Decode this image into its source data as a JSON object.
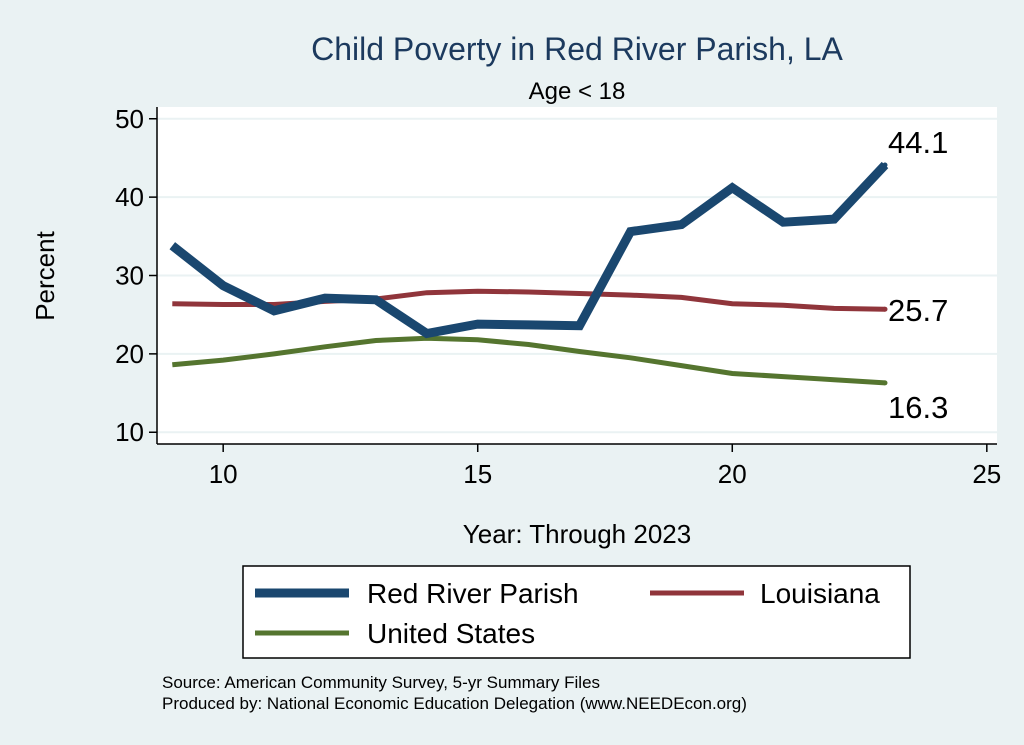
{
  "chart_data": {
    "type": "line",
    "title": "Child Poverty in Red River Parish, LA",
    "subtitle": "Age < 18",
    "xlabel": "Year: Through 2023",
    "ylabel": "Percent",
    "xlim": [
      8.7,
      25.2
    ],
    "ylim": [
      8.5,
      51.5
    ],
    "xticks": [
      10,
      15,
      20,
      25
    ],
    "yticks": [
      10,
      20,
      30,
      40,
      50
    ],
    "x": [
      9,
      10,
      11,
      12,
      13,
      14,
      15,
      16,
      17,
      18,
      19,
      20,
      21,
      22,
      23
    ],
    "series": [
      {
        "name": "Red River Parish",
        "color": "#1a476f",
        "values": [
          33.8,
          28.7,
          25.5,
          27.1,
          26.9,
          22.6,
          23.8,
          23.7,
          23.6,
          35.6,
          36.5,
          41.2,
          36.8,
          37.2,
          44.1
        ],
        "end_label": "44.1"
      },
      {
        "name": "Louisiana",
        "color": "#90353b",
        "values": [
          26.4,
          26.3,
          26.3,
          26.7,
          27.0,
          27.8,
          28.0,
          27.9,
          27.7,
          27.5,
          27.2,
          26.4,
          26.2,
          25.8,
          25.7
        ],
        "end_label": "25.7"
      },
      {
        "name": "United States",
        "color": "#55752f",
        "values": [
          18.6,
          19.2,
          20.0,
          20.9,
          21.7,
          22.0,
          21.8,
          21.2,
          20.3,
          19.5,
          18.5,
          17.5,
          17.1,
          16.7,
          16.3
        ],
        "end_label": "16.3"
      }
    ],
    "legend": {
      "position": "bottom",
      "entries": [
        "Red River Parish",
        "Louisiana",
        "United States"
      ]
    },
    "grid": true
  },
  "notes": {
    "source": "Source: American Community Survey, 5-yr Summary Files",
    "produced_by": "Produced by: National Economic Education Delegation (www.NEEDEcon.org)"
  }
}
